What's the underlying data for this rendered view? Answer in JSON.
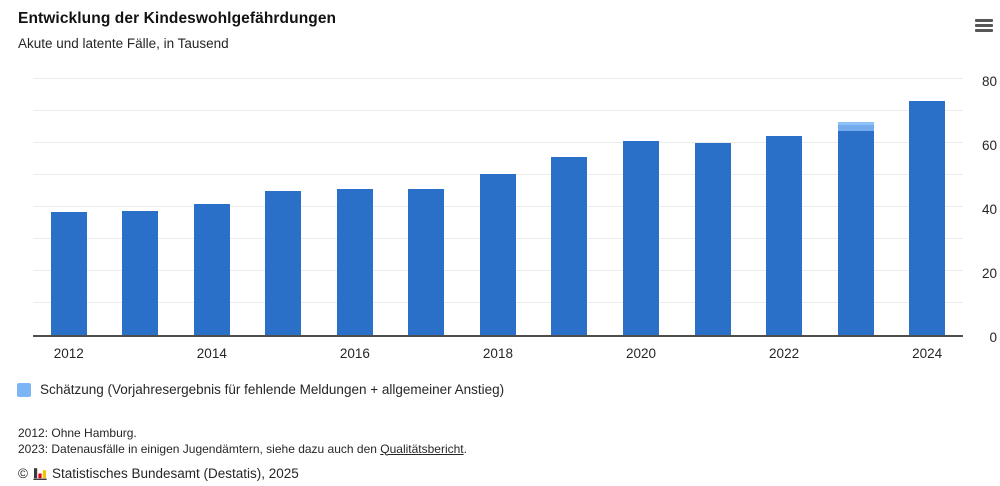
{
  "chart_data": {
    "type": "bar",
    "title": "Entwicklung der Kindeswohlgefährdungen",
    "subtitle": "Akute und latente Fälle, in Tausend",
    "categories": [
      "2012",
      "2013",
      "2014",
      "2015",
      "2016",
      "2017",
      "2018",
      "2019",
      "2020",
      "2021",
      "2022",
      "2023",
      "2024"
    ],
    "series": [
      {
        "name": "Akute und latente Fälle",
        "color": "#2a70c8",
        "values": [
          38.3,
          38.7,
          40.8,
          44.9,
          45.7,
          45.5,
          50.4,
          55.5,
          60.6,
          59.9,
          62.3,
          63.7,
          73.0
        ]
      },
      {
        "name": "Schätzung (Vorjahresergebnis für fehlende Meldungen + allgemeiner Anstieg)",
        "color": "#7db4f3",
        "values": [
          0,
          0,
          0,
          0,
          0,
          0,
          0,
          0,
          0,
          0,
          0,
          3.8,
          0
        ]
      }
    ],
    "ylim": [
      0,
      80
    ],
    "grid_step": 10,
    "grid": "on",
    "ytick_labels": [
      80,
      60,
      40,
      20,
      0
    ],
    "xtick_labels": [
      "2012",
      "2014",
      "2016",
      "2018",
      "2020",
      "2022",
      "2024"
    ],
    "legend_position": "bottom",
    "annotations": [
      {
        "text": "2012: Ohne Hamburg."
      },
      {
        "prefix": "2023: Datenausfälle in einigen Jugendämtern, siehe dazu auch den ",
        "link": "Qualitätsbericht",
        "suffix": "."
      }
    ]
  },
  "colors": {
    "bar": "#2a70c8",
    "estimate_fill": "#74abef",
    "estimate_top": "#8fc0f7",
    "legend_swatch": "#7db4f3",
    "gridline": "#ebebeb",
    "axis_line": "#4d4d4d",
    "text": "#262626",
    "hamburger": "#575757",
    "logo_dark": "#3a3a3a",
    "logo_red": "#e2001a",
    "logo_yellow": "#f5c400"
  },
  "source": {
    "copyright": "©",
    "publisher": "Statistisches Bundesamt (Destatis), 2025"
  },
  "menu": {
    "icon": "hamburger-menu-icon"
  }
}
